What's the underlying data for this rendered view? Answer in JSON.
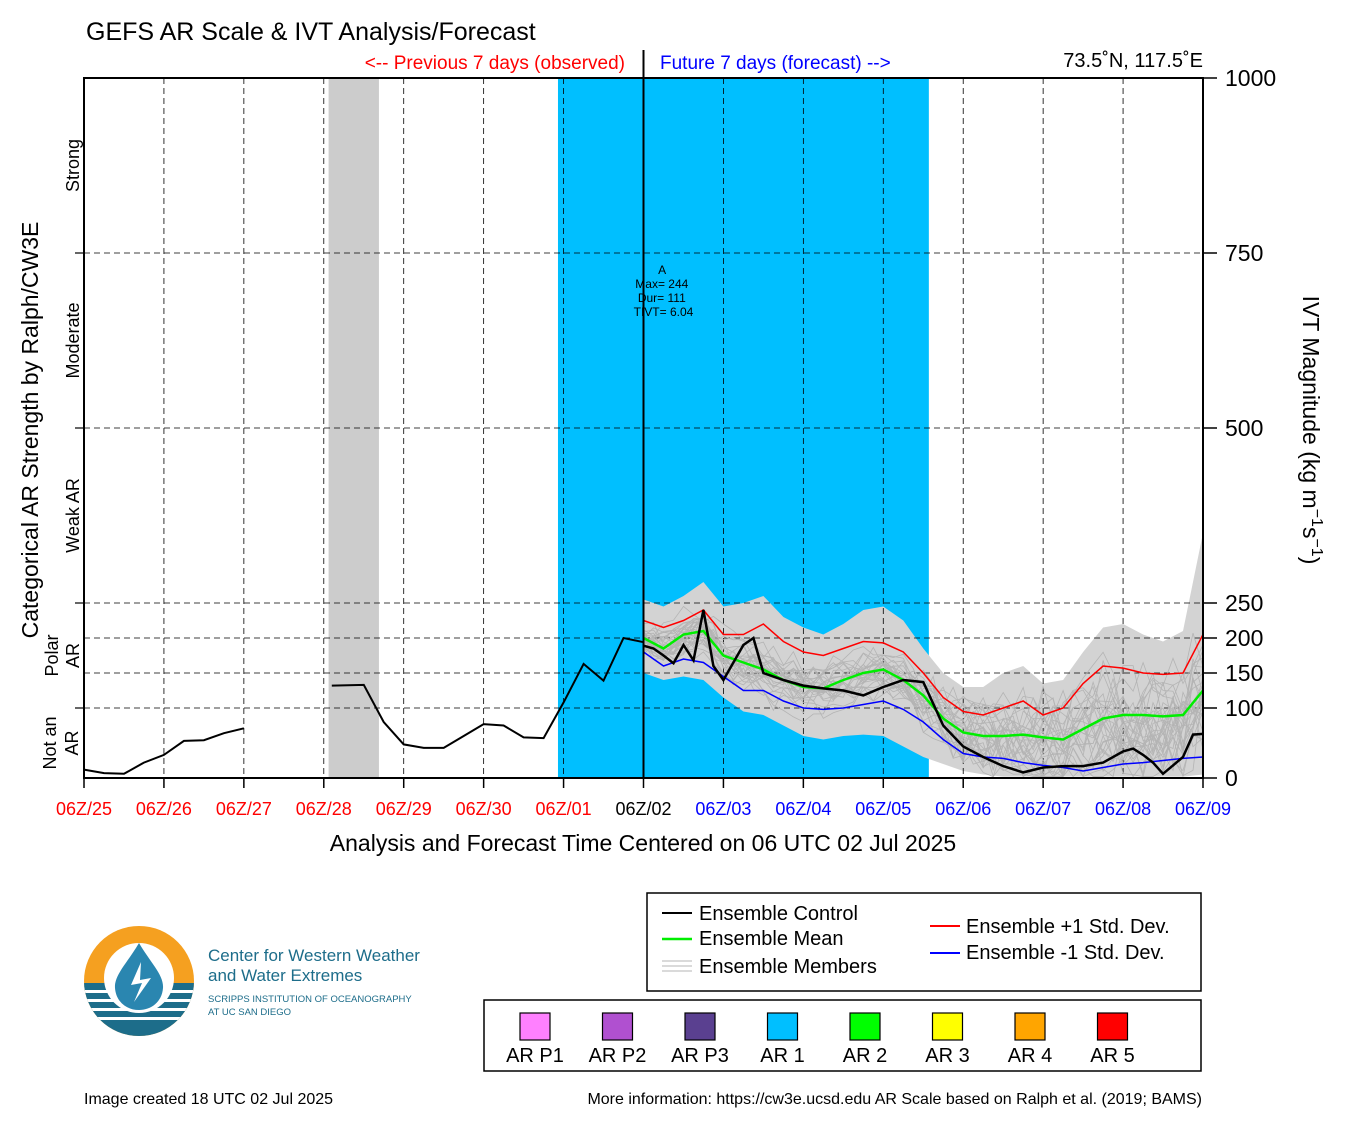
{
  "title": "GEFS AR Scale & IVT Analysis/Forecast",
  "previous_label": "<-- Previous 7 days (observed)",
  "future_label": "Future 7 days (forecast) -->",
  "location": "73.5˚N, 117.5˚E",
  "colors": {
    "observed": "#ff0000",
    "forecast": "#0000ff",
    "ar1": "#00bfff",
    "gray_band": "#cccccc",
    "members": "#b4b4b4",
    "spread": "#d3d3d3",
    "control": "#000000",
    "mean": "#00ee00",
    "plus_sd": "#ff0000",
    "minus_sd": "#0000ff"
  },
  "left_axis": {
    "label": "Categorical AR Strength by Ralph/CW3E",
    "categories": [
      {
        "label": "Strong",
        "ivt_range": [
          750,
          1000
        ]
      },
      {
        "label": "Moderate",
        "ivt_range": [
          500,
          750
        ]
      },
      {
        "label": "Weak AR",
        "ivt_range": [
          250,
          500
        ]
      },
      {
        "label": "Polar AR",
        "ivt_range": [
          100,
          250
        ]
      },
      {
        "label1": "Not an",
        "label2": "AR",
        "ivt_range": [
          0,
          100
        ]
      }
    ]
  },
  "right_axis": {
    "label": "IVT Magnitude (kg m",
    "label_sup1": "−1",
    "label_mid": "s",
    "label_sup2": "−1",
    "label_end": ")"
  },
  "x_axis_title": "Analysis and Forecast Time Centered on 06 UTC 02 Jul 2025",
  "event_annotation": {
    "lines": [
      "A",
      "Max= 244",
      "Dur= 111",
      "TIVT= 6.04"
    ],
    "x": 7.25,
    "y": 720
  },
  "legend": {
    "items": [
      {
        "label": "Ensemble Control",
        "color": "#000000"
      },
      {
        "label": "Ensemble Mean",
        "color": "#00ee00"
      },
      {
        "label": "Ensemble Members",
        "color": "#b4b4b4"
      },
      {
        "label": "Ensemble +1 Std. Dev.",
        "color": "#ff0000"
      },
      {
        "label": "Ensemble -1 Std. Dev.",
        "color": "#0000ff"
      }
    ]
  },
  "ar_scale_legend": [
    {
      "label": "AR P1",
      "color": "#ff80ff"
    },
    {
      "label": "AR P2",
      "color": "#b050d0"
    },
    {
      "label": "AR P3",
      "color": "#5a4090"
    },
    {
      "label": "AR 1",
      "color": "#00bfff"
    },
    {
      "label": "AR 2",
      "color": "#00ff00"
    },
    {
      "label": "AR 3",
      "color": "#ffff00"
    },
    {
      "label": "AR 4",
      "color": "#ffa500"
    },
    {
      "label": "AR 5",
      "color": "#ff0000"
    }
  ],
  "logo": {
    "line1": "Center for Western Weather",
    "line2": "and Water Extremes",
    "line3": "SCRIPPS INSTITUTION OF OCEANOGRAPHY",
    "line4": "AT UC SAN DIEGO"
  },
  "footer": {
    "created": "Image created 18 UTC 02 Jul 2025",
    "info": "More information: https://cw3e.ucsd.edu AR Scale based on Ralph et al. (2019; BAMS)"
  },
  "chart_data": {
    "type": "line",
    "x_unit": "days from 06Z/25",
    "xlim": [
      0,
      14
    ],
    "ylim": [
      0,
      1000
    ],
    "right_ticks": [
      0,
      100,
      150,
      200,
      250,
      500,
      750,
      1000
    ],
    "h_gridlines": [
      100,
      150,
      200,
      250,
      500,
      750
    ],
    "x_ticks": [
      {
        "x": 0,
        "label": "06Z/25",
        "period": "observed"
      },
      {
        "x": 1,
        "label": "06Z/26",
        "period": "observed"
      },
      {
        "x": 2,
        "label": "06Z/27",
        "period": "observed"
      },
      {
        "x": 3,
        "label": "06Z/28",
        "period": "observed"
      },
      {
        "x": 4,
        "label": "06Z/29",
        "period": "observed"
      },
      {
        "x": 5,
        "label": "06Z/30",
        "period": "observed"
      },
      {
        "x": 6,
        "label": "06Z/01",
        "period": "observed"
      },
      {
        "x": 7,
        "label": "06Z/02",
        "period": "current"
      },
      {
        "x": 8,
        "label": "06Z/03",
        "period": "forecast"
      },
      {
        "x": 9,
        "label": "06Z/04",
        "period": "forecast"
      },
      {
        "x": 10,
        "label": "06Z/05",
        "period": "forecast"
      },
      {
        "x": 11,
        "label": "06Z/06",
        "period": "forecast"
      },
      {
        "x": 12,
        "label": "06Z/07",
        "period": "forecast"
      },
      {
        "x": 13,
        "label": "06Z/08",
        "period": "forecast"
      },
      {
        "x": 14,
        "label": "06Z/09",
        "period": "forecast"
      }
    ],
    "now_x": 7,
    "shaded_regions": [
      {
        "kind": "missing",
        "x0": 3.06,
        "x1": 3.69
      },
      {
        "kind": "AR 1",
        "x0": 5.93,
        "x1": 10.57
      }
    ],
    "observed_segments": [
      [
        [
          0,
          12
        ],
        [
          0.25,
          7
        ],
        [
          0.5,
          6
        ],
        [
          0.75,
          22
        ],
        [
          1,
          33
        ],
        [
          1.25,
          53
        ],
        [
          1.5,
          54
        ],
        [
          1.75,
          64
        ],
        [
          2,
          71
        ]
      ],
      [
        [
          3.1,
          132
        ],
        [
          3.5,
          133
        ],
        [
          3.75,
          80
        ],
        [
          4,
          48
        ],
        [
          4.25,
          43
        ],
        [
          4.5,
          43
        ],
        [
          4.75,
          60
        ],
        [
          5,
          77
        ],
        [
          5.25,
          75
        ],
        [
          5.5,
          58
        ],
        [
          5.75,
          57
        ],
        [
          6,
          108
        ],
        [
          6.25,
          163
        ],
        [
          6.5,
          139
        ],
        [
          6.75,
          200
        ],
        [
          7,
          194
        ]
      ]
    ],
    "control": [
      [
        7,
        189
      ],
      [
        7.125,
        185
      ],
      [
        7.25,
        175
      ],
      [
        7.375,
        164
      ],
      [
        7.5,
        190
      ],
      [
        7.625,
        168
      ],
      [
        7.75,
        240
      ],
      [
        7.875,
        160
      ],
      [
        8,
        140
      ],
      [
        8.125,
        165
      ],
      [
        8.25,
        190
      ],
      [
        8.375,
        200
      ],
      [
        8.5,
        150
      ],
      [
        8.75,
        140
      ],
      [
        9,
        132
      ],
      [
        9.25,
        128
      ],
      [
        9.5,
        125
      ],
      [
        9.75,
        118
      ],
      [
        10,
        130
      ],
      [
        10.25,
        140
      ],
      [
        10.5,
        137
      ],
      [
        10.75,
        75
      ],
      [
        11,
        45
      ],
      [
        11.25,
        30
      ],
      [
        11.5,
        17
      ],
      [
        11.75,
        8
      ],
      [
        12,
        15
      ],
      [
        12.25,
        17
      ],
      [
        12.5,
        17
      ],
      [
        12.75,
        22
      ],
      [
        13,
        38
      ],
      [
        13.125,
        42
      ],
      [
        13.25,
        33
      ],
      [
        13.375,
        22
      ],
      [
        13.5,
        6
      ],
      [
        13.625,
        18
      ],
      [
        13.75,
        30
      ],
      [
        13.875,
        62
      ],
      [
        14,
        63
      ]
    ],
    "mean": [
      [
        7,
        200
      ],
      [
        7.25,
        185
      ],
      [
        7.5,
        205
      ],
      [
        7.75,
        210
      ],
      [
        8,
        175
      ],
      [
        8.25,
        165
      ],
      [
        8.5,
        155
      ],
      [
        8.75,
        140
      ],
      [
        9,
        130
      ],
      [
        9.25,
        128
      ],
      [
        9.5,
        140
      ],
      [
        9.75,
        150
      ],
      [
        10,
        155
      ],
      [
        10.25,
        140
      ],
      [
        10.5,
        118
      ],
      [
        10.75,
        85
      ],
      [
        11,
        65
      ],
      [
        11.25,
        60
      ],
      [
        11.5,
        60
      ],
      [
        11.75,
        62
      ],
      [
        12,
        58
      ],
      [
        12.25,
        55
      ],
      [
        12.5,
        70
      ],
      [
        12.75,
        85
      ],
      [
        13,
        90
      ],
      [
        13.25,
        90
      ],
      [
        13.5,
        88
      ],
      [
        13.75,
        90
      ],
      [
        14,
        125
      ]
    ],
    "plus_sd": [
      [
        7,
        225
      ],
      [
        7.25,
        215
      ],
      [
        7.5,
        225
      ],
      [
        7.75,
        240
      ],
      [
        8,
        205
      ],
      [
        8.25,
        205
      ],
      [
        8.5,
        220
      ],
      [
        8.75,
        195
      ],
      [
        9,
        180
      ],
      [
        9.25,
        175
      ],
      [
        9.5,
        185
      ],
      [
        9.75,
        195
      ],
      [
        10,
        193
      ],
      [
        10.25,
        180
      ],
      [
        10.5,
        150
      ],
      [
        10.75,
        115
      ],
      [
        11,
        95
      ],
      [
        11.25,
        90
      ],
      [
        11.5,
        100
      ],
      [
        11.75,
        110
      ],
      [
        12,
        90
      ],
      [
        12.25,
        100
      ],
      [
        12.5,
        135
      ],
      [
        12.75,
        160
      ],
      [
        13,
        157
      ],
      [
        13.25,
        150
      ],
      [
        13.5,
        148
      ],
      [
        13.75,
        150
      ],
      [
        14,
        205
      ]
    ],
    "minus_sd": [
      [
        7,
        180
      ],
      [
        7.25,
        160
      ],
      [
        7.5,
        170
      ],
      [
        7.75,
        165
      ],
      [
        8,
        145
      ],
      [
        8.25,
        125
      ],
      [
        8.5,
        125
      ],
      [
        8.75,
        110
      ],
      [
        9,
        100
      ],
      [
        9.25,
        98
      ],
      [
        9.5,
        100
      ],
      [
        9.75,
        105
      ],
      [
        10,
        110
      ],
      [
        10.25,
        98
      ],
      [
        10.5,
        80
      ],
      [
        10.75,
        55
      ],
      [
        11,
        35
      ],
      [
        11.25,
        30
      ],
      [
        11.5,
        28
      ],
      [
        11.75,
        22
      ],
      [
        12,
        18
      ],
      [
        12.25,
        15
      ],
      [
        12.5,
        10
      ],
      [
        12.75,
        15
      ],
      [
        13,
        20
      ],
      [
        13.25,
        22
      ],
      [
        13.5,
        25
      ],
      [
        13.75,
        28
      ],
      [
        14,
        30
      ]
    ],
    "spread_upper": [
      [
        7,
        255
      ],
      [
        7.25,
        245
      ],
      [
        7.5,
        260
      ],
      [
        7.75,
        280
      ],
      [
        8,
        245
      ],
      [
        8.25,
        250
      ],
      [
        8.5,
        260
      ],
      [
        8.75,
        230
      ],
      [
        9,
        215
      ],
      [
        9.25,
        205
      ],
      [
        9.5,
        220
      ],
      [
        9.75,
        240
      ],
      [
        10,
        245
      ],
      [
        10.25,
        225
      ],
      [
        10.5,
        185
      ],
      [
        10.75,
        150
      ],
      [
        11,
        130
      ],
      [
        11.25,
        130
      ],
      [
        11.5,
        150
      ],
      [
        11.75,
        160
      ],
      [
        12,
        135
      ],
      [
        12.25,
        140
      ],
      [
        12.5,
        180
      ],
      [
        12.75,
        215
      ],
      [
        13,
        220
      ],
      [
        13.25,
        205
      ],
      [
        13.5,
        195
      ],
      [
        13.75,
        210
      ],
      [
        14,
        350
      ]
    ],
    "spread_lower": [
      [
        7,
        150
      ],
      [
        7.25,
        140
      ],
      [
        7.5,
        145
      ],
      [
        7.75,
        140
      ],
      [
        8,
        115
      ],
      [
        8.25,
        95
      ],
      [
        8.5,
        90
      ],
      [
        8.75,
        75
      ],
      [
        9,
        60
      ],
      [
        9.25,
        55
      ],
      [
        9.5,
        60
      ],
      [
        9.75,
        62
      ],
      [
        10,
        60
      ],
      [
        10.25,
        45
      ],
      [
        10.5,
        30
      ],
      [
        10.75,
        20
      ],
      [
        11,
        10
      ],
      [
        11.25,
        5
      ],
      [
        11.5,
        2
      ],
      [
        11.75,
        2
      ],
      [
        12,
        2
      ],
      [
        12.25,
        2
      ],
      [
        12.5,
        2
      ],
      [
        12.75,
        2
      ],
      [
        13,
        2
      ],
      [
        13.25,
        2
      ],
      [
        13.5,
        2
      ],
      [
        13.75,
        2
      ],
      [
        14,
        5
      ]
    ]
  }
}
